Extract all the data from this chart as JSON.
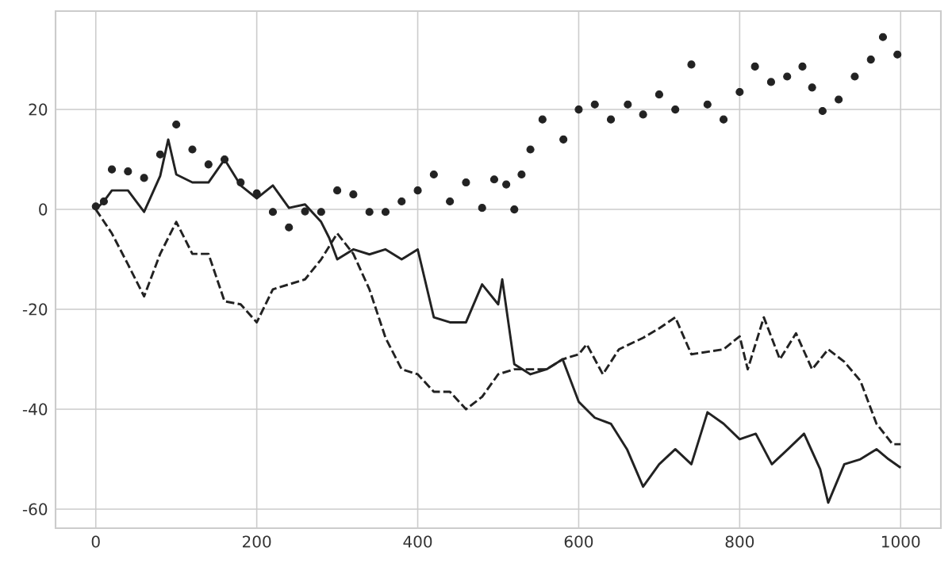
{
  "chart_data": {
    "type": "line",
    "xlim": [
      -50,
      1050
    ],
    "ylim": [
      -63.8,
      39.7
    ],
    "xticks": [
      0,
      200,
      400,
      600,
      800,
      1000
    ],
    "yticks": [
      -60,
      -40,
      -20,
      0,
      20
    ],
    "grid": true,
    "series": [
      {
        "type": "scatter",
        "marker": "circle",
        "color": "#222222",
        "x": [
          0,
          10,
          20,
          40,
          60,
          80,
          100,
          120,
          140,
          160,
          180,
          200,
          220,
          240,
          260,
          280,
          300,
          320,
          340,
          360,
          380,
          400,
          420,
          440,
          460,
          480,
          495,
          510,
          520,
          529,
          540,
          555,
          581,
          600,
          620,
          640,
          661,
          680,
          700,
          720,
          740,
          760,
          780,
          800,
          819,
          839,
          859,
          878,
          890,
          903,
          923,
          943,
          963,
          978,
          996
        ],
        "values": [
          0.6,
          1.6,
          8,
          7.6,
          6.3,
          11,
          17,
          12,
          9,
          10,
          5.4,
          3.2,
          -0.5,
          -3.6,
          -0.4,
          -0.5,
          3.8,
          3,
          -0.5,
          -0.5,
          1.6,
          3.8,
          7,
          1.6,
          5.4,
          0.3,
          6,
          5,
          0,
          7,
          12,
          18,
          14,
          20,
          21,
          18,
          21,
          19,
          23,
          20,
          29,
          21,
          18,
          23.5,
          28.6,
          25.5,
          26.6,
          28.6,
          24.4,
          19.7,
          22,
          26.6,
          30,
          34.5,
          31
        ]
      },
      {
        "type": "line",
        "marker": "none",
        "line_style": "solid",
        "color": "#222222",
        "x": [
          0,
          10,
          20,
          40,
          60,
          80,
          90,
          100,
          120,
          140,
          160,
          180,
          200,
          220,
          240,
          260,
          280,
          290,
          300,
          320,
          340,
          360,
          380,
          400,
          420,
          440,
          460,
          480,
          500,
          505,
          520,
          540,
          560,
          580,
          600,
          620,
          640,
          660,
          680,
          700,
          720,
          740,
          760,
          780,
          800,
          820,
          840,
          860,
          880,
          900,
          910,
          930,
          950,
          970,
          985,
          1000
        ],
        "values": [
          0,
          1.6,
          3.8,
          3.8,
          -0.5,
          6.7,
          14,
          7,
          5.4,
          5.4,
          10,
          4.8,
          2.2,
          4.8,
          0.3,
          1,
          -2.5,
          -5.7,
          -10,
          -8,
          -9,
          -8,
          -10,
          -8,
          -21.6,
          -22.6,
          -22.6,
          -15,
          -19,
          -14,
          -31,
          -33,
          -32,
          -30,
          -38.5,
          -41.7,
          -42.9,
          -48,
          -55.5,
          -51,
          -48,
          -51,
          -40.6,
          -42.9,
          -46,
          -44.9,
          -51,
          -48,
          -44.9,
          -52,
          -58.7,
          -51,
          -50,
          -48,
          -50,
          -51.7
        ]
      },
      {
        "marker": "none",
        "line_style": "dashed",
        "color": "#222222",
        "x": [
          0,
          20,
          40,
          60,
          80,
          100,
          120,
          140,
          160,
          180,
          200,
          220,
          240,
          260,
          280,
          300,
          320,
          340,
          360,
          380,
          400,
          420,
          440,
          460,
          480,
          500,
          520,
          540,
          560,
          580,
          600,
          610,
          620,
          630,
          650,
          680,
          700,
          720,
          740,
          760,
          780,
          800,
          810,
          830,
          850,
          870,
          890,
          910,
          930,
          950,
          970,
          990,
          1000
        ],
        "values": [
          0,
          -4.8,
          -11,
          -17.4,
          -8.9,
          -2.5,
          -8.9,
          -8.9,
          -18.4,
          -19,
          -22.6,
          -16,
          -15,
          -14,
          -10,
          -4.8,
          -8.9,
          -16,
          -25.7,
          -32,
          -33,
          -36.5,
          -36.5,
          -40,
          -37.5,
          -33,
          -32,
          -32,
          -32,
          -30,
          -29,
          -27,
          -30,
          -33,
          -28,
          -25.7,
          -23.8,
          -21.6,
          -29,
          -28.5,
          -28,
          -25.4,
          -32,
          -21.6,
          -30,
          -24.8,
          -32,
          -28,
          -30.5,
          -34.3,
          -42.9,
          -47,
          -47
        ]
      }
    ]
  }
}
